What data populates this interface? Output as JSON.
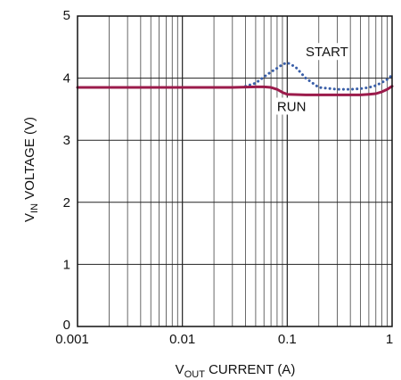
{
  "chart_data": {
    "type": "line",
    "title": "",
    "xlabel": {
      "main": "V",
      "sub": "OUT",
      "rest": " CURRENT (A)"
    },
    "ylabel": {
      "main": "V",
      "sub": "IN",
      "rest": " VOLTAGE (V)"
    },
    "xscale": "log",
    "xlim": [
      0.001,
      1
    ],
    "ylim": [
      0,
      5
    ],
    "grid": true,
    "x_tick_labels": [
      "0.001",
      "0.01",
      "0.1",
      "1"
    ],
    "y_tick_labels": [
      "0",
      "1",
      "2",
      "3",
      "4",
      "5"
    ],
    "series": [
      {
        "name": "START",
        "style": "dotted",
        "color": "#3a5fa8",
        "x": [
          0.04,
          0.05,
          0.06,
          0.07,
          0.08,
          0.09,
          0.1,
          0.12,
          0.15,
          0.2,
          0.3,
          0.4,
          0.5,
          0.6,
          0.7,
          0.8,
          0.9,
          1.0
        ],
        "y": [
          3.87,
          3.92,
          4.02,
          4.1,
          4.16,
          4.22,
          4.25,
          4.18,
          4.0,
          3.85,
          3.82,
          3.82,
          3.83,
          3.85,
          3.88,
          3.93,
          3.98,
          4.05
        ]
      },
      {
        "name": "RUN",
        "style": "solid",
        "color": "#9b1b4b",
        "x": [
          0.001,
          0.01,
          0.03,
          0.05,
          0.06,
          0.07,
          0.08,
          0.09,
          0.1,
          0.15,
          0.2,
          0.3,
          0.5,
          0.6,
          0.7,
          0.8,
          0.9,
          1.0
        ],
        "y": [
          3.85,
          3.85,
          3.85,
          3.86,
          3.86,
          3.85,
          3.82,
          3.77,
          3.74,
          3.73,
          3.73,
          3.73,
          3.73,
          3.74,
          3.75,
          3.78,
          3.82,
          3.87
        ]
      }
    ],
    "annotations": [
      {
        "text": "START",
        "x": 0.15,
        "y": 4.35
      },
      {
        "text": "RUN",
        "x": 0.08,
        "y": 3.47
      }
    ]
  }
}
